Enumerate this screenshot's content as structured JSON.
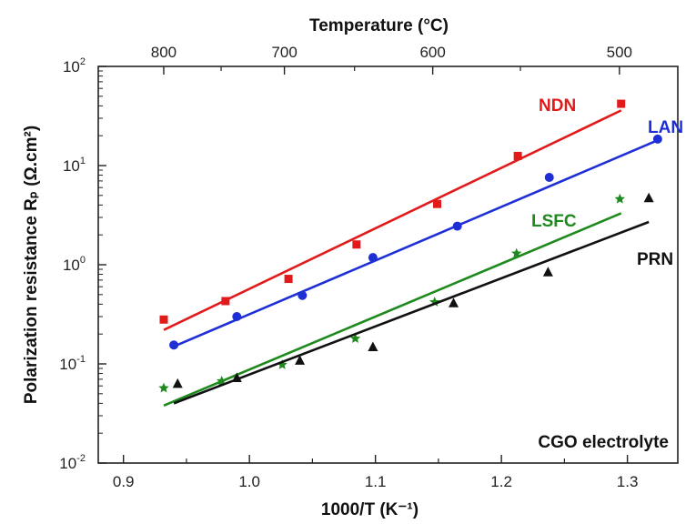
{
  "chart_data": {
    "type": "scatter",
    "title": "",
    "xlabel": "1000/T (K⁻¹)",
    "ylabel": "Polarization resistance Rₚ (Ω.cm²)",
    "top_xlabel": "Temperature (°C)",
    "annotation": "CGO electrolyte",
    "xlim": [
      0.88,
      1.34
    ],
    "ylim": [
      0.01,
      100
    ],
    "yscale": "log",
    "x_ticks": [
      0.9,
      1.0,
      1.1,
      1.2,
      1.3
    ],
    "x_tick_labels": [
      "0.9",
      "1.0",
      "1.1",
      "1.2",
      "1.3"
    ],
    "y_ticks": [
      {
        "value": 0.01,
        "base": "10",
        "exp": "-2"
      },
      {
        "value": 0.1,
        "base": "10",
        "exp": "-1"
      },
      {
        "value": 1,
        "base": "10",
        "exp": "0"
      },
      {
        "value": 10,
        "base": "10",
        "exp": "1"
      },
      {
        "value": 100,
        "base": "10",
        "exp": "2"
      }
    ],
    "top_ticks": [
      {
        "label": "800",
        "temp_c": 800
      },
      {
        "label": "700",
        "temp_c": 700
      },
      {
        "label": "600",
        "temp_c": 600
      },
      {
        "label": "500",
        "temp_c": 500
      }
    ],
    "grid": false,
    "series": [
      {
        "name": "NDN",
        "color": "#e11b1b",
        "marker": "square",
        "x": [
          0.932,
          0.981,
          1.031,
          1.085,
          1.149,
          1.213,
          1.295
        ],
        "y": [
          0.28,
          0.43,
          0.72,
          1.6,
          4.1,
          12.5,
          42
        ],
        "fit": {
          "x": [
            0.932,
            1.295
          ],
          "y": [
            0.22,
            36
          ]
        }
      },
      {
        "name": "LAN",
        "color": "#1f2fd6",
        "marker": "circle",
        "x": [
          0.94,
          0.99,
          1.042,
          1.098,
          1.165,
          1.238,
          1.324
        ],
        "y": [
          0.155,
          0.3,
          0.49,
          1.18,
          2.45,
          7.6,
          18.5
        ],
        "fit": {
          "x": [
            0.94,
            1.324
          ],
          "y": [
            0.15,
            18
          ]
        }
      },
      {
        "name": "LSFC",
        "color": "#1e8a1e",
        "marker": "star",
        "x": [
          0.932,
          0.978,
          1.026,
          1.084,
          1.147,
          1.212,
          1.294
        ],
        "y": [
          0.057,
          0.067,
          0.098,
          0.18,
          0.42,
          1.3,
          4.6
        ],
        "fit": {
          "x": [
            0.932,
            1.295
          ],
          "y": [
            0.038,
            3.3
          ]
        }
      },
      {
        "name": "PRN",
        "color": "#111111",
        "marker": "triangle",
        "x": [
          0.943,
          0.99,
          1.04,
          1.098,
          1.162,
          1.237,
          1.317
        ],
        "y": [
          0.063,
          0.072,
          0.108,
          0.148,
          0.41,
          0.84,
          4.7
        ],
        "fit": {
          "x": [
            0.94,
            1.317
          ],
          "y": [
            0.04,
            2.7
          ]
        }
      }
    ]
  }
}
